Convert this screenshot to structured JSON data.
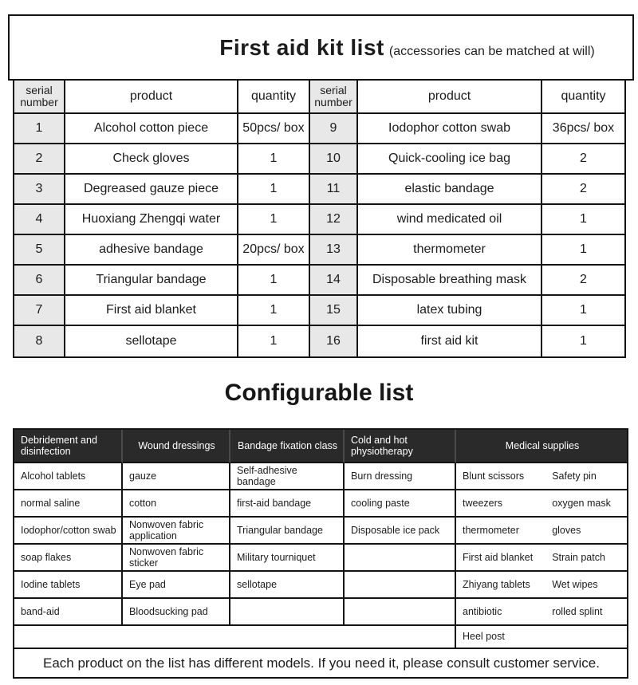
{
  "page": {
    "title": "First aid kit list",
    "subtitle": "(accessories can be matched at will)",
    "section2_title": "Configurable list",
    "footer_note": "Each product on the list has different models. If you need it, please consult customer service."
  },
  "colors": {
    "table_border": "#141414",
    "serial_cell_bg": "#e8e8e8",
    "dark_header_bg": "#2a2a2a",
    "dark_header_text": "#ffffff"
  },
  "kit_table": {
    "headers": {
      "serial": "serial number",
      "product": "product",
      "quantity": "quantity"
    },
    "left_rows": [
      {
        "serial": "1",
        "product": "Alcohol cotton piece",
        "quantity": "50pcs/ box"
      },
      {
        "serial": "2",
        "product": "Check gloves",
        "quantity": "1"
      },
      {
        "serial": "3",
        "product": "Degreased gauze piece",
        "quantity": "1"
      },
      {
        "serial": "4",
        "product": "Huoxiang Zhengqi water",
        "quantity": "1"
      },
      {
        "serial": "5",
        "product": "adhesive bandage",
        "quantity": "20pcs/ box"
      },
      {
        "serial": "6",
        "product": "Triangular bandage",
        "quantity": "1"
      },
      {
        "serial": "7",
        "product": "First aid blanket",
        "quantity": "1"
      },
      {
        "serial": "8",
        "product": "sellotape",
        "quantity": "1"
      }
    ],
    "right_rows": [
      {
        "serial": "9",
        "product": "Iodophor cotton swab",
        "quantity": "36pcs/ box"
      },
      {
        "serial": "10",
        "product": "Quick-cooling ice bag",
        "quantity": "2"
      },
      {
        "serial": "11",
        "product": "elastic bandage",
        "quantity": "2"
      },
      {
        "serial": "12",
        "product": "wind medicated oil",
        "quantity": "1"
      },
      {
        "serial": "13",
        "product": "thermometer",
        "quantity": "1"
      },
      {
        "serial": "14",
        "product": "Disposable breathing mask",
        "quantity": "2"
      },
      {
        "serial": "15",
        "product": "latex tubing",
        "quantity": "1"
      },
      {
        "serial": "16",
        "product": "first aid kit",
        "quantity": "1"
      }
    ]
  },
  "config_table": {
    "columns": [
      {
        "header": "Debridement and disinfection",
        "items": [
          "Alcohol tablets",
          "normal saline",
          "Iodophor/cotton swab",
          "soap flakes",
          "Iodine tablets",
          "band-aid"
        ]
      },
      {
        "header": "Wound dressings",
        "items": [
          "gauze",
          "cotton",
          "Nonwoven fabric application",
          "Nonwoven fabric sticker",
          "Eye pad",
          "Bloodsucking pad"
        ]
      },
      {
        "header": "Bandage fixation class",
        "items": [
          "Self-adhesive bandage",
          "first-aid bandage",
          "Triangular bandage",
          "Military tourniquet",
          "sellotape",
          ""
        ]
      },
      {
        "header": "Cold and hot physiotherapy",
        "items": [
          "Burn dressing",
          "cooling paste",
          "Disposable ice pack",
          "",
          "",
          ""
        ]
      },
      {
        "header": "Medical supplies",
        "items_left": [
          "Blunt scissors",
          "tweezers",
          "thermometer",
          "First aid blanket",
          "Zhiyang tablets",
          "antibiotic"
        ],
        "items_right": [
          "Safety pin",
          "oxygen mask",
          "gloves",
          "Strain patch",
          "Wet wipes",
          "rolled splint"
        ],
        "extra_row": "Heel post"
      }
    ]
  }
}
